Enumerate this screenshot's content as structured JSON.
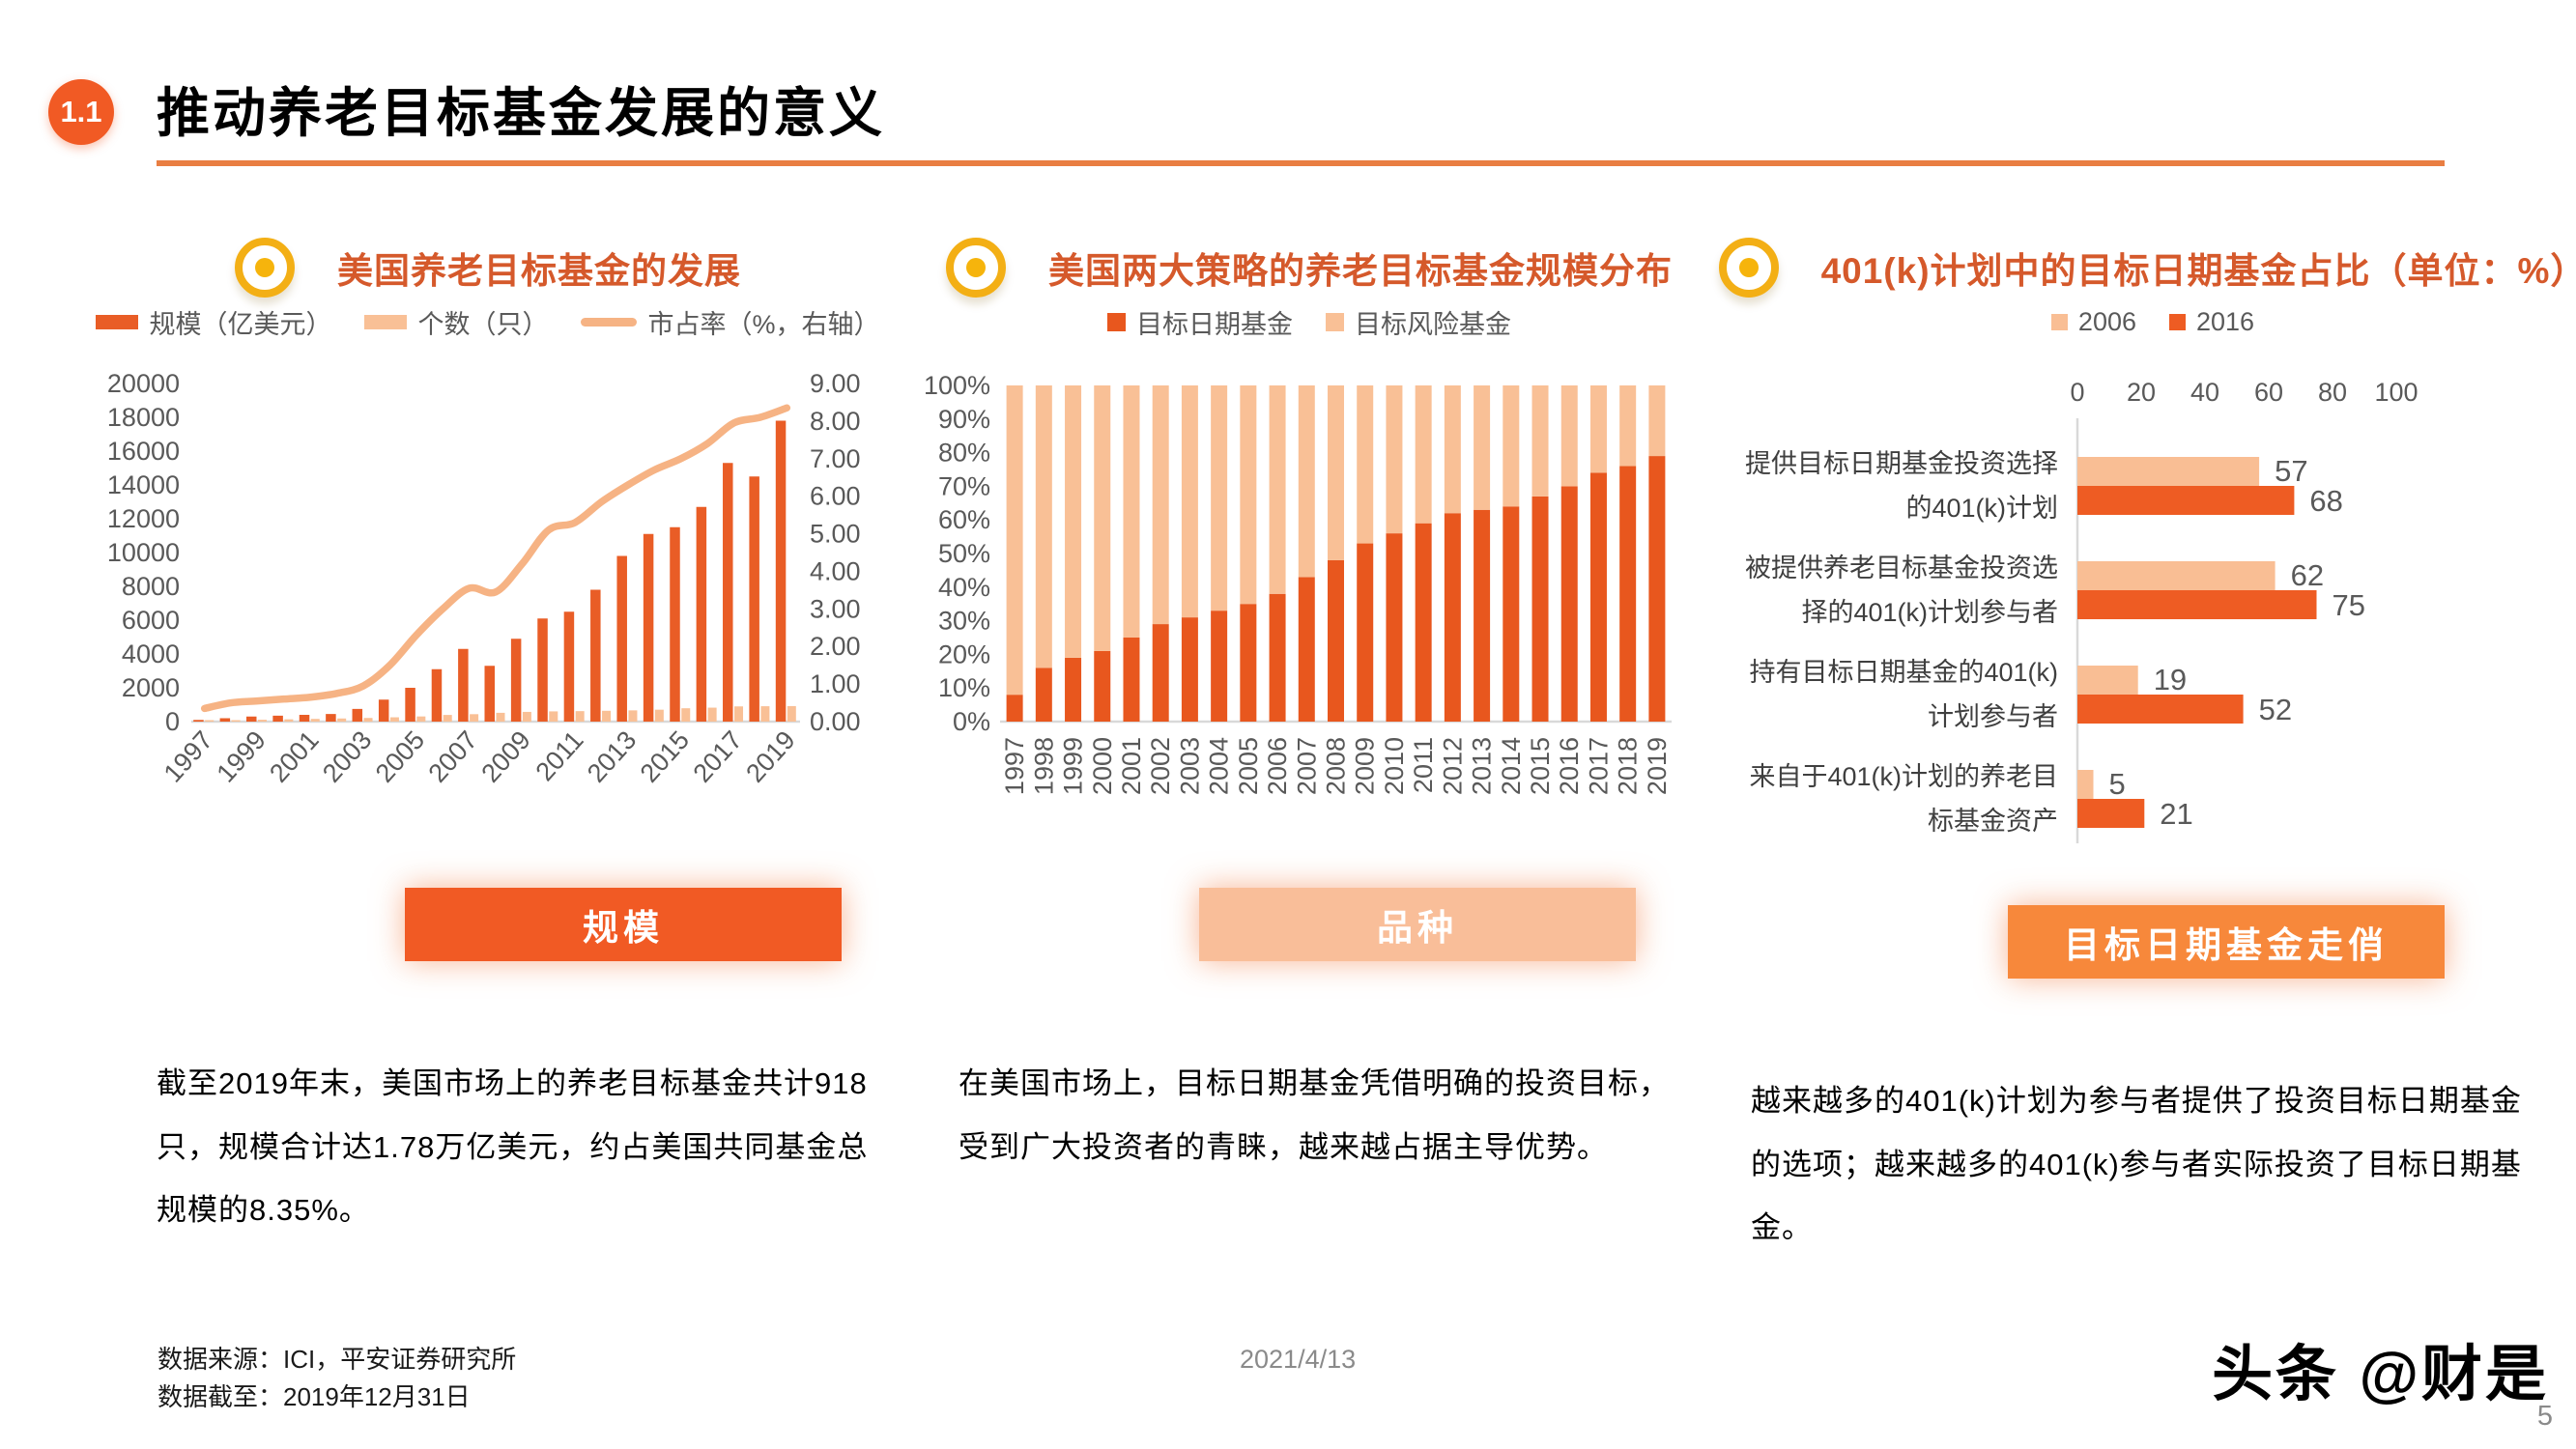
{
  "header": {
    "section_number": "1.1",
    "title": "推动养老目标基金发展的意义"
  },
  "columns": [
    {
      "chart_title": "美国养老目标基金的发展",
      "banner_label": "规模",
      "banner_color": "#F15A24",
      "paragraph": "截至2019年末，美国市场上的养老目标基金共计918只，规模合计达1.78万亿美元，约占美国共同基金总规模的8.35%。"
    },
    {
      "chart_title": "美国两大策略的养老目标基金规模分布",
      "banner_label": "品种",
      "banner_color": "#F9BE99",
      "paragraph": "在美国市场上，目标日期基金凭借明确的投资目标，受到广大投资者的青睐，越来越占据主导优势。"
    },
    {
      "chart_title": "401(k)计划中的目标日期基金占比（单位：%）",
      "banner_label": "目标日期基金走俏",
      "banner_color": "#F7883B",
      "paragraph": "越来越多的401(k)计划为参与者提供了投资目标日期基金的选项；越来越多的401(k)参与者实际投资了目标日期基金。"
    }
  ],
  "chart_data": [
    {
      "id": "us-pension-target-fund-development",
      "type": "combo-bar-line",
      "title": "美国养老目标基金的发展",
      "x": [
        "1997",
        "1998",
        "1999",
        "2000",
        "2001",
        "2002",
        "2003",
        "2004",
        "2005",
        "2006",
        "2007",
        "2008",
        "2009",
        "2010",
        "2011",
        "2012",
        "2013",
        "2014",
        "2015",
        "2016",
        "2017",
        "2018",
        "2019"
      ],
      "x_tick_labels": [
        "1997",
        "1999",
        "2001",
        "2003",
        "2005",
        "2007",
        "2009",
        "2011",
        "2013",
        "2015",
        "2017",
        "2019"
      ],
      "left_axis": {
        "min": 0,
        "max": 20000,
        "step": 2000
      },
      "right_axis": {
        "min": 0,
        "max": 9,
        "step": 1,
        "decimals": 2
      },
      "grid": false,
      "legend_position": "top",
      "series": [
        {
          "name": "规模（亿美元）",
          "type": "bar",
          "axis": "left",
          "color": "#E95D26",
          "values": [
            100,
            200,
            300,
            350,
            400,
            450,
            750,
            1300,
            2000,
            3100,
            4300,
            3300,
            4900,
            6100,
            6500,
            7800,
            9800,
            11100,
            11500,
            12700,
            15300,
            14500,
            17800
          ]
        },
        {
          "name": "个数（只）",
          "type": "bar",
          "axis": "left",
          "color": "#F9C096",
          "values": [
            65,
            85,
            110,
            135,
            160,
            185,
            215,
            255,
            305,
            395,
            440,
            520,
            575,
            605,
            620,
            640,
            665,
            705,
            790,
            825,
            900,
            910,
            918
          ]
        },
        {
          "name": "市占率（%，右轴）",
          "type": "line",
          "axis": "right",
          "color": "#F6B384",
          "values": [
            0.35,
            0.5,
            0.55,
            0.6,
            0.65,
            0.75,
            0.95,
            1.5,
            2.3,
            3.0,
            3.55,
            3.45,
            4.2,
            5.1,
            5.3,
            5.85,
            6.3,
            6.7,
            7.0,
            7.4,
            7.95,
            8.1,
            8.35
          ]
        }
      ]
    },
    {
      "id": "two-strategy-scale-distribution",
      "type": "stacked-bar-100",
      "title": "美国两大策略的养老目标基金规模分布",
      "x": [
        "1997",
        "1998",
        "1999",
        "2000",
        "2001",
        "2002",
        "2003",
        "2004",
        "2005",
        "2006",
        "2007",
        "2008",
        "2009",
        "2010",
        "2011",
        "2012",
        "2013",
        "2014",
        "2015",
        "2016",
        "2017",
        "2018",
        "2019"
      ],
      "y_axis": {
        "min": 0,
        "max": 100,
        "step": 10,
        "suffix": "%"
      },
      "grid": false,
      "legend_position": "top",
      "series": [
        {
          "name": "目标日期基金",
          "color": "#E8571E",
          "values": [
            8,
            16,
            19,
            21,
            25,
            29,
            31,
            33,
            35,
            38,
            43,
            48,
            53,
            56,
            59,
            62,
            63,
            64,
            67,
            70,
            74,
            76,
            79
          ]
        },
        {
          "name": "目标风险基金",
          "color": "#F9C096",
          "values": [
            92,
            84,
            81,
            79,
            75,
            71,
            69,
            67,
            65,
            62,
            57,
            52,
            47,
            44,
            41,
            38,
            37,
            36,
            33,
            30,
            26,
            24,
            21
          ]
        }
      ]
    },
    {
      "id": "target-date-share-in-401k",
      "type": "grouped-hbar",
      "title": "401(k)计划中的目标日期基金占比（单位：%）",
      "x_axis": {
        "min": 0,
        "max": 100,
        "step": 20
      },
      "grid": false,
      "legend_position": "top",
      "categories": [
        [
          "提供目标日期基金投资选择",
          "的401(k)计划"
        ],
        [
          "被提供养老目标基金投资选",
          "择的401(k)计划参与者"
        ],
        [
          "持有目标日期基金的401(k)",
          "计划参与者"
        ],
        [
          "来自于401(k)计划的养老目",
          "标基金资产"
        ]
      ],
      "series": [
        {
          "name": "2006",
          "color": "#F9BE94",
          "values": [
            57,
            62,
            19,
            5
          ]
        },
        {
          "name": "2016",
          "color": "#EE5C23",
          "values": [
            68,
            75,
            52,
            21
          ]
        }
      ]
    }
  ],
  "footer": {
    "source": "数据来源：ICI，平安证券研究所",
    "cutoff": "数据截至：2019年12月31日",
    "date": "2021/4/13",
    "watermark": "头条 @财是",
    "page_number": "5"
  }
}
